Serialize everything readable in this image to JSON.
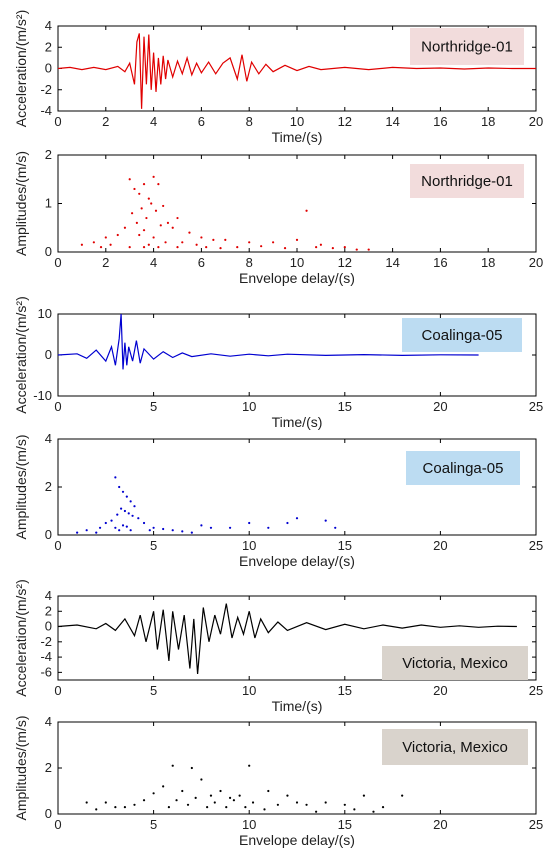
{
  "chart_data": [
    {
      "id": "p1",
      "type": "line",
      "annotation": "Northridge-01",
      "annotation_bg": "#f2dcdc",
      "color": "#e00000",
      "xlabel": "Time/(s)",
      "ylabel": "Acceleration/(m/s²)",
      "xlim": [
        0,
        20
      ],
      "ylim": [
        -4,
        4
      ],
      "xticks": [
        0,
        2,
        4,
        6,
        8,
        10,
        12,
        14,
        16,
        18,
        20
      ],
      "yticks": [
        -4,
        -2,
        0,
        2,
        4
      ],
      "series": [
        {
          "x": [
            0,
            0.5,
            1,
            1.5,
            2,
            2.5,
            2.8,
            3.0,
            3.2,
            3.3,
            3.4,
            3.5,
            3.6,
            3.7,
            3.8,
            3.9,
            4.0,
            4.1,
            4.2,
            4.3,
            4.4,
            4.5,
            4.6,
            4.8,
            5.0,
            5.2,
            5.4,
            5.6,
            5.8,
            6.0,
            6.3,
            6.6,
            6.9,
            7.2,
            7.5,
            7.7,
            7.9,
            8.1,
            8.4,
            8.7,
            9.0,
            9.5,
            10,
            10.5,
            11,
            12,
            13,
            14,
            15,
            16,
            17,
            18,
            19,
            20
          ],
          "y": [
            0,
            0.1,
            -0.1,
            0.1,
            -0.1,
            0.2,
            -0.3,
            0.5,
            -1.5,
            2.5,
            3.3,
            -3.8,
            3.0,
            -1.5,
            3.2,
            -2.0,
            1.5,
            -2.2,
            1.0,
            -1.5,
            1.2,
            -1.0,
            0.8,
            -0.8,
            0.7,
            -0.5,
            1.0,
            -0.6,
            0.5,
            -0.4,
            0.6,
            -0.5,
            0.5,
            1.0,
            -1.0,
            1.3,
            -1.2,
            0.6,
            -0.5,
            0.4,
            -0.3,
            0.3,
            -0.2,
            0.2,
            -0.1,
            0.1,
            -0.1,
            0.1,
            0,
            0.05,
            -0.05,
            0.05,
            0,
            0
          ]
        }
      ]
    },
    {
      "id": "p2",
      "type": "scatter",
      "annotation": "Northridge-01",
      "annotation_bg": "#f2dcdc",
      "color": "#e00000",
      "xlabel": "Envelope delay/(s)",
      "ylabel": "Amplitudes/(m/s)",
      "xlim": [
        0,
        20
      ],
      "ylim": [
        0,
        2
      ],
      "xticks": [
        0,
        2,
        4,
        6,
        8,
        10,
        12,
        14,
        16,
        18,
        20
      ],
      "yticks": [
        0,
        1,
        2
      ],
      "series": [
        {
          "x": [
            3.0,
            3.2,
            3.4,
            3.6,
            3.8,
            4.0,
            4.2,
            3.5,
            3.9,
            4.4,
            3.1,
            3.7,
            4.1,
            4.6,
            2.8,
            5.0,
            3.3,
            4.3,
            3.6,
            4.8,
            2.5,
            5.5,
            6.0,
            3.4,
            4.0,
            6.5,
            7.0,
            2.0,
            1.5,
            1.0,
            5.2,
            8.0,
            9.0,
            10.0,
            11.0,
            10.4,
            12.0,
            13.0,
            4.5,
            3.8,
            5.8,
            7.5,
            8.5,
            9.5,
            10.8,
            11.5,
            12.5,
            6.2,
            6.8,
            2.2,
            1.8,
            3.0,
            4.2,
            5.0,
            3.6
          ],
          "y": [
            1.5,
            1.3,
            1.2,
            1.4,
            1.1,
            1.55,
            1.4,
            0.9,
            1.0,
            0.95,
            0.8,
            0.7,
            0.85,
            0.6,
            0.5,
            0.7,
            0.6,
            0.55,
            0.45,
            0.5,
            0.35,
            0.4,
            0.3,
            0.35,
            0.3,
            0.25,
            0.25,
            0.3,
            0.2,
            0.15,
            0.2,
            0.2,
            0.2,
            0.25,
            0.15,
            0.85,
            0.1,
            0.05,
            0.2,
            0.15,
            0.15,
            0.1,
            0.12,
            0.08,
            0.1,
            0.08,
            0.05,
            0.1,
            0.08,
            0.15,
            0.1,
            0.1,
            0.1,
            0.1,
            0.1
          ]
        }
      ]
    },
    {
      "id": "p3",
      "type": "line",
      "annotation": "Coalinga-05",
      "annotation_bg": "#bcdcf2",
      "color": "#0000d0",
      "xlabel": "Time/(s)",
      "ylabel": "Acceleration/(m/s²)",
      "xlim": [
        0,
        25
      ],
      "ylim": [
        -10,
        10
      ],
      "xticks": [
        0,
        5,
        10,
        15,
        20,
        25
      ],
      "yticks": [
        -10,
        0,
        10
      ],
      "series": [
        {
          "x": [
            0,
            1,
            1.5,
            2,
            2.5,
            2.8,
            3.0,
            3.2,
            3.3,
            3.4,
            3.5,
            3.6,
            3.7,
            3.9,
            4.1,
            4.3,
            4.5,
            5.0,
            5.5,
            6.0,
            6.5,
            7,
            8,
            9,
            10,
            11,
            12,
            14,
            16,
            18,
            20,
            22
          ],
          "y": [
            0,
            0.3,
            -0.8,
            1.2,
            -1.5,
            2.0,
            -2.5,
            4.0,
            10.0,
            -3.5,
            3.0,
            -2.5,
            2.0,
            -1.5,
            3.5,
            -2.0,
            1.5,
            -1.0,
            0.8,
            -0.6,
            0.5,
            -0.4,
            0.3,
            -0.3,
            0.2,
            -0.2,
            0.2,
            -0.1,
            0.1,
            -0.1,
            0.05,
            0
          ]
        }
      ]
    },
    {
      "id": "p4",
      "type": "scatter",
      "annotation": "Coalinga-05",
      "annotation_bg": "#bcdcf2",
      "color": "#0000d0",
      "xlabel": "Envelope delay/(s)",
      "ylabel": "Amplitudes/(m/s)",
      "xlim": [
        0,
        25
      ],
      "ylim": [
        0,
        4
      ],
      "xticks": [
        0,
        5,
        10,
        15,
        20,
        25
      ],
      "yticks": [
        0,
        2,
        4
      ],
      "series": [
        {
          "x": [
            3.0,
            3.2,
            3.4,
            3.6,
            3.8,
            4.0,
            3.3,
            3.5,
            3.7,
            3.1,
            3.9,
            4.2,
            2.8,
            2.5,
            4.5,
            3.4,
            3.6,
            3.0,
            2.2,
            5.0,
            5.5,
            6.0,
            1.5,
            1.0,
            7.5,
            8.0,
            9.0,
            10.0,
            11.0,
            12.0,
            12.5,
            14.0,
            14.5,
            4.8,
            3.8,
            3.2,
            2.0,
            6.5,
            7.0
          ],
          "y": [
            2.4,
            2.0,
            1.8,
            1.6,
            1.4,
            1.2,
            1.1,
            1.0,
            0.9,
            0.85,
            0.8,
            0.7,
            0.6,
            0.5,
            0.5,
            0.4,
            0.35,
            0.3,
            0.3,
            0.3,
            0.25,
            0.2,
            0.2,
            0.1,
            0.4,
            0.3,
            0.3,
            0.5,
            0.3,
            0.5,
            0.7,
            0.6,
            0.3,
            0.2,
            0.2,
            0.2,
            0.1,
            0.15,
            0.1
          ]
        }
      ]
    },
    {
      "id": "p5",
      "type": "line",
      "annotation": "Victoria, Mexico",
      "annotation_bg": "#d9d3cc",
      "color": "#000000",
      "xlabel": "Time/(s)",
      "ylabel": "Acceleration/(m/s²)",
      "xlim": [
        0,
        25
      ],
      "ylim": [
        -7,
        4
      ],
      "xticks": [
        0,
        5,
        10,
        15,
        20,
        25
      ],
      "yticks": [
        -6,
        -4,
        -2,
        0,
        2,
        4
      ],
      "series": [
        {
          "x": [
            0,
            1,
            2,
            2.5,
            3,
            3.5,
            4.0,
            4.3,
            4.6,
            5.0,
            5.2,
            5.5,
            5.8,
            6.0,
            6.3,
            6.6,
            6.9,
            7.1,
            7.3,
            7.6,
            7.9,
            8.2,
            8.5,
            8.8,
            9.1,
            9.4,
            9.7,
            10.0,
            10.3,
            10.6,
            11,
            11.5,
            12,
            13,
            14,
            15,
            16,
            17,
            18,
            19,
            20,
            21,
            22,
            23,
            24
          ],
          "y": [
            0,
            0.2,
            -0.3,
            0.4,
            -0.5,
            1.0,
            -1.2,
            1.5,
            -2.0,
            2.0,
            -3.0,
            2.2,
            -4.5,
            2.0,
            -3.0,
            1.5,
            -5.5,
            1.0,
            -6.2,
            2.5,
            -2.0,
            1.5,
            -1.0,
            3.0,
            -1.5,
            1.2,
            -1.0,
            2.0,
            -1.5,
            1.0,
            -0.8,
            0.6,
            -0.5,
            0.5,
            -0.4,
            0.3,
            -0.3,
            0.2,
            -0.2,
            0.2,
            -0.1,
            0.1,
            -0.1,
            0.05,
            0
          ]
        }
      ]
    },
    {
      "id": "p6",
      "type": "scatter",
      "annotation": "Victoria, Mexico",
      "annotation_bg": "#d9d3cc",
      "color": "#000000",
      "xlabel": "Envelope delay/(s)",
      "ylabel": "Amplitudes/(m/s)",
      "xlim": [
        0,
        25
      ],
      "ylim": [
        0,
        4
      ],
      "xticks": [
        0,
        5,
        10,
        15,
        20,
        25
      ],
      "yticks": [
        0,
        2,
        4
      ],
      "series": [
        {
          "x": [
            5.5,
            6.0,
            6.5,
            7.0,
            7.5,
            8.0,
            8.5,
            9.0,
            9.5,
            10.0,
            5.0,
            6.2,
            7.2,
            8.2,
            9.2,
            10.2,
            4.5,
            11.0,
            11.5,
            12.0,
            4.0,
            3.5,
            3.0,
            12.5,
            13.0,
            14.0,
            15.0,
            16.0,
            17.0,
            18.0,
            2.5,
            2.0,
            1.5,
            6.8,
            7.8,
            8.8,
            5.8,
            9.8,
            10.8,
            13.5,
            15.5,
            16.5
          ],
          "y": [
            1.2,
            2.1,
            1.0,
            2.0,
            1.5,
            0.8,
            1.0,
            0.7,
            0.8,
            2.1,
            0.9,
            0.6,
            0.7,
            0.5,
            0.6,
            0.5,
            0.6,
            1.0,
            0.4,
            0.8,
            0.4,
            0.3,
            0.3,
            0.5,
            0.4,
            0.5,
            0.4,
            0.8,
            0.3,
            0.8,
            0.5,
            0.2,
            0.5,
            0.4,
            0.3,
            0.3,
            0.3,
            0.3,
            0.2,
            0.1,
            0.2,
            0.1
          ]
        }
      ]
    }
  ]
}
